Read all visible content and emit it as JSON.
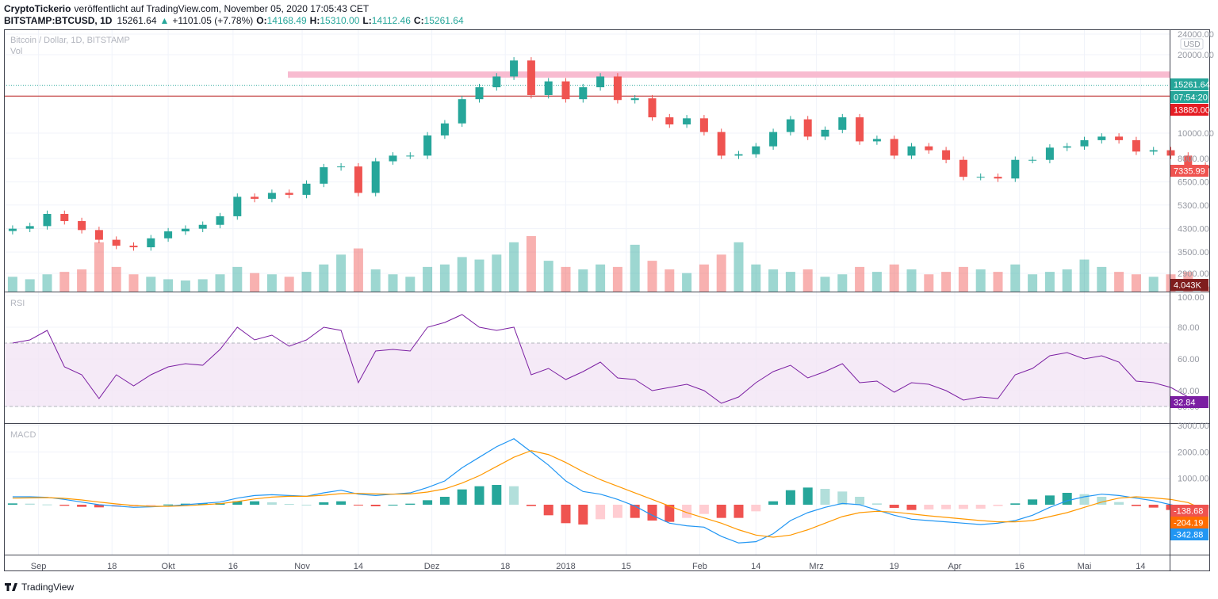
{
  "header": {
    "author": "CryptoTickerio",
    "published": "veröffentlicht auf TradingView.com, November 05, 2020 17:05:43 CET",
    "symbol": "BITSTAMP:BTCUSD, 1D",
    "last": "15261.64",
    "change": "+1101.05 (+7.78%)",
    "o_label": "O:",
    "o": "14168.49",
    "h_label": "H:",
    "h": "15310.00",
    "l_label": "L:",
    "l": "14112.46",
    "c_label": "C:",
    "c": "15261.64"
  },
  "footer": {
    "brand": "TradingView"
  },
  "colors": {
    "up": "#26a69a",
    "down": "#ef5350",
    "rsi": "#7b1fa2",
    "macd": "#2196f3",
    "signal": "#ff9800",
    "band": "#f8bbd0",
    "line": "#b71c1c"
  },
  "chart_data": {
    "type": "candlestick",
    "title": "Bitcoin / Dollar, 1D, BITSTAMP",
    "volume_label": "Vol",
    "rsi_label": "RSI",
    "macd_label": "MACD",
    "currency": "USD",
    "price_scale": "log",
    "price_ticks": [
      "24000.00",
      "20000.00",
      "10000.00",
      "8000.00",
      "6500.00",
      "5300.00",
      "4300.00",
      "3500.00",
      "2900.00"
    ],
    "rsi_ticks": [
      "100.00",
      "80.00",
      "60.00",
      "40.00",
      "30.00"
    ],
    "macd_ticks": [
      "3000.00",
      "2000.00",
      "1000.00"
    ],
    "x_ticks": [
      {
        "label": "Sep",
        "day": 8
      },
      {
        "label": "18",
        "day": 25
      },
      {
        "label": "Okt",
        "day": 38
      },
      {
        "label": "16",
        "day": 53
      },
      {
        "label": "Nov",
        "day": 69
      },
      {
        "label": "14",
        "day": 82
      },
      {
        "label": "Dez",
        "day": 99
      },
      {
        "label": "18",
        "day": 116
      },
      {
        "label": "2018",
        "day": 130
      },
      {
        "label": "15",
        "day": 144
      },
      {
        "label": "Feb",
        "day": 161
      },
      {
        "label": "14",
        "day": 174
      },
      {
        "label": "Mrz",
        "day": 188
      },
      {
        "label": "19",
        "day": 206
      },
      {
        "label": "Apr",
        "day": 220
      },
      {
        "label": "16",
        "day": 235
      },
      {
        "label": "Mai",
        "day": 250
      },
      {
        "label": "14",
        "day": 263
      }
    ],
    "start_date": "2017-08-24",
    "bar_interval_days": 4,
    "close": [
      4300,
      4400,
      4900,
      4600,
      4250,
      3900,
      3700,
      3650,
      3950,
      4200,
      4300,
      4450,
      4800,
      5700,
      5600,
      5900,
      5800,
      6400,
      7400,
      7450,
      5900,
      7800,
      8200,
      8200,
      9800,
      10900,
      13500,
      15000,
      16500,
      19000,
      14000,
      15800,
      13500,
      15000,
      16500,
      13400,
      13600,
      11500,
      10800,
      11400,
      10100,
      8200,
      8300,
      8900,
      10100,
      11300,
      9700,
      10300,
      11500,
      9300,
      9500,
      8200,
      8900,
      8600,
      7900,
      6800,
      6800,
      6700,
      7900,
      7900,
      8800,
      8900,
      9400,
      9700,
      9400,
      8500,
      8600,
      8200,
      7500,
      7336
    ],
    "volume_k": [
      12,
      10,
      14,
      16,
      18,
      40,
      20,
      14,
      12,
      10,
      9,
      10,
      14,
      20,
      15,
      14,
      12,
      16,
      22,
      30,
      35,
      18,
      14,
      12,
      20,
      22,
      28,
      26,
      30,
      40,
      45,
      25,
      20,
      18,
      22,
      20,
      38,
      25,
      18,
      15,
      22,
      30,
      40,
      22,
      18,
      16,
      18,
      12,
      14,
      20,
      16,
      22,
      18,
      14,
      16,
      20,
      18,
      16,
      22,
      14,
      16,
      18,
      26,
      20,
      16,
      14,
      12,
      14,
      16,
      4.043
    ],
    "rsi": [
      70,
      72,
      78,
      55,
      50,
      35,
      50,
      43,
      50,
      55,
      57,
      56,
      66,
      80,
      72,
      75,
      68,
      72,
      80,
      78,
      45,
      65,
      66,
      65,
      80,
      83,
      88,
      80,
      78,
      80,
      50,
      54,
      47,
      52,
      58,
      48,
      47,
      40,
      42,
      44,
      40,
      32,
      36,
      45,
      52,
      56,
      48,
      52,
      57,
      45,
      46,
      39,
      45,
      44,
      40,
      34,
      36,
      35,
      50,
      54,
      62,
      64,
      60,
      62,
      58,
      46,
      45,
      42,
      36,
      32.84
    ],
    "rsi_band": [
      30,
      70
    ],
    "macd": [
      300,
      300,
      280,
      200,
      100,
      0,
      -50,
      -100,
      -80,
      -50,
      0,
      50,
      100,
      250,
      350,
      380,
      350,
      320,
      450,
      550,
      400,
      350,
      400,
      450,
      650,
      900,
      1400,
      1800,
      2200,
      2500,
      2000,
      1500,
      900,
      500,
      400,
      200,
      -50,
      -400,
      -700,
      -800,
      -850,
      -1200,
      -1450,
      -1400,
      -1100,
      -600,
      -300,
      -100,
      50,
      0,
      -200,
      -400,
      -550,
      -600,
      -650,
      -700,
      -750,
      -700,
      -600,
      -400,
      -100,
      150,
      300,
      400,
      350,
      250,
      150,
      0,
      -150,
      -342.88
    ],
    "signal": [
      250,
      260,
      270,
      240,
      180,
      100,
      30,
      -30,
      -60,
      -60,
      -40,
      0,
      40,
      120,
      220,
      290,
      320,
      320,
      360,
      420,
      430,
      410,
      400,
      410,
      480,
      600,
      820,
      1100,
      1450,
      1800,
      2050,
      1900,
      1600,
      1250,
      950,
      700,
      450,
      200,
      -50,
      -300,
      -500,
      -700,
      -950,
      -1150,
      -1230,
      -1150,
      -950,
      -700,
      -450,
      -300,
      -250,
      -280,
      -350,
      -420,
      -480,
      -540,
      -600,
      -650,
      -650,
      -600,
      -450,
      -300,
      -100,
      100,
      250,
      300,
      260,
      200,
      80,
      -204.19
    ],
    "resistance_line": 13880,
    "resistance_zone": [
      16330,
      17240
    ],
    "labels": {
      "last_price": "15261.64",
      "countdown": "07:54:20",
      "line_price": "13880.00",
      "prev_close": "7335.99",
      "volume": "4.043K",
      "rsi": "32.84",
      "histogram": "-138.68",
      "signal": "-204.19",
      "macd": "-342.88"
    }
  }
}
